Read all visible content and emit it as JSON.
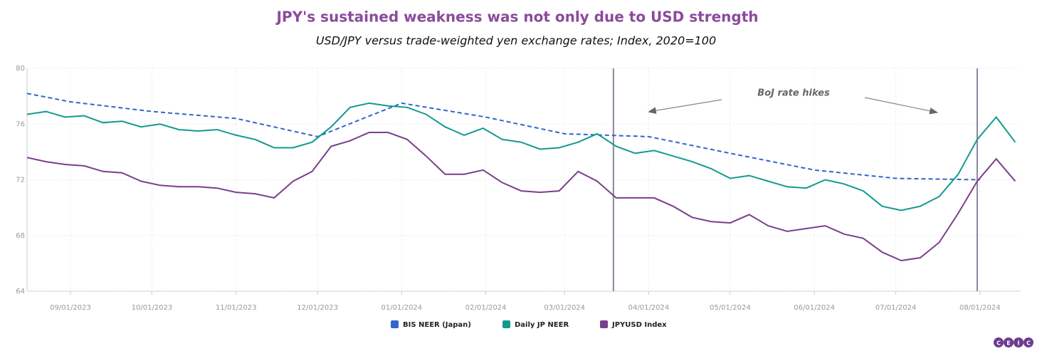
{
  "chart_data": {
    "type": "line",
    "title": "JPY's sustained weakness was not only due to USD strength",
    "subtitle": "USD/JPY versus trade-weighted yen exchange rates; Index, 2020=100",
    "xlim": [
      "08/16/2023",
      "08/16/2024"
    ],
    "xticks": [
      "09/01/2023",
      "10/01/2023",
      "11/01/2023",
      "12/01/2023",
      "01/01/2024",
      "02/01/2024",
      "03/01/2024",
      "04/01/2024",
      "05/01/2024",
      "06/01/2024",
      "07/01/2024",
      "08/01/2024"
    ],
    "ylim": [
      64,
      80
    ],
    "yticks": [
      64,
      68,
      72,
      76,
      80
    ],
    "grid": true,
    "annotation": "BoJ rate hikes",
    "vlines": [
      "03/19/2024",
      "07/31/2024"
    ],
    "series": [
      {
        "name": "BIS NEER (Japan)",
        "color": "#3366cc",
        "dashed": true,
        "x": [
          "08/16/2023",
          "09/01/2023",
          "10/01/2023",
          "11/01/2023",
          "12/01/2023",
          "01/01/2024",
          "02/01/2024",
          "03/01/2024",
          "04/01/2024",
          "05/01/2024",
          "06/01/2024",
          "07/01/2024",
          "08/01/2024"
        ],
        "values": [
          78.2,
          77.6,
          76.9,
          76.4,
          75.1,
          77.5,
          76.5,
          75.3,
          75.1,
          73.9,
          72.7,
          72.1,
          72.0
        ]
      },
      {
        "name": "Daily JP NEER",
        "color": "#14998f",
        "dashed": false,
        "x": [
          "08/16/2023",
          "08/23/2023",
          "08/30/2023",
          "09/06/2023",
          "09/13/2023",
          "09/20/2023",
          "09/27/2023",
          "10/04/2023",
          "10/11/2023",
          "10/18/2023",
          "10/25/2023",
          "11/01/2023",
          "11/08/2023",
          "11/15/2023",
          "11/22/2023",
          "11/29/2023",
          "12/06/2023",
          "12/13/2023",
          "12/20/2023",
          "12/27/2023",
          "01/03/2024",
          "01/10/2024",
          "01/17/2024",
          "01/24/2024",
          "01/31/2024",
          "02/07/2024",
          "02/14/2024",
          "02/21/2024",
          "02/28/2024",
          "03/06/2024",
          "03/13/2024",
          "03/20/2024",
          "03/27/2024",
          "04/03/2024",
          "04/10/2024",
          "04/17/2024",
          "04/24/2024",
          "05/01/2024",
          "05/08/2024",
          "05/15/2024",
          "05/22/2024",
          "05/29/2024",
          "06/05/2024",
          "06/12/2024",
          "06/19/2024",
          "06/26/2024",
          "07/03/2024",
          "07/10/2024",
          "07/17/2024",
          "07/24/2024",
          "07/31/2024",
          "08/07/2024",
          "08/14/2024"
        ],
        "values": [
          76.7,
          76.9,
          76.5,
          76.6,
          76.1,
          76.2,
          75.8,
          76.0,
          75.6,
          75.5,
          75.6,
          75.2,
          74.9,
          74.3,
          74.3,
          74.7,
          75.8,
          77.2,
          77.5,
          77.3,
          77.2,
          76.7,
          75.8,
          75.2,
          75.7,
          74.9,
          74.7,
          74.2,
          74.3,
          74.7,
          75.3,
          74.4,
          73.9,
          74.1,
          73.7,
          73.3,
          72.8,
          72.1,
          72.3,
          71.9,
          71.5,
          71.4,
          72.0,
          71.7,
          71.2,
          70.1,
          69.8,
          70.1,
          70.8,
          72.4,
          74.9,
          76.5,
          74.7
        ]
      },
      {
        "name": "JPYUSD Index",
        "color": "#7b3f8c",
        "dashed": false,
        "x": [
          "08/16/2023",
          "08/23/2023",
          "08/30/2023",
          "09/06/2023",
          "09/13/2023",
          "09/20/2023",
          "09/27/2023",
          "10/04/2023",
          "10/11/2023",
          "10/18/2023",
          "10/25/2023",
          "11/01/2023",
          "11/08/2023",
          "11/15/2023",
          "11/22/2023",
          "11/29/2023",
          "12/06/2023",
          "12/13/2023",
          "12/20/2023",
          "12/27/2023",
          "01/03/2024",
          "01/10/2024",
          "01/17/2024",
          "01/24/2024",
          "01/31/2024",
          "02/07/2024",
          "02/14/2024",
          "02/21/2024",
          "02/28/2024",
          "03/06/2024",
          "03/13/2024",
          "03/20/2024",
          "03/27/2024",
          "04/03/2024",
          "04/10/2024",
          "04/17/2024",
          "04/24/2024",
          "05/01/2024",
          "05/08/2024",
          "05/15/2024",
          "05/22/2024",
          "05/29/2024",
          "06/05/2024",
          "06/12/2024",
          "06/19/2024",
          "06/26/2024",
          "07/03/2024",
          "07/10/2024",
          "07/17/2024",
          "07/24/2024",
          "07/31/2024",
          "08/07/2024",
          "08/14/2024"
        ],
        "values": [
          73.6,
          73.3,
          73.1,
          73.0,
          72.6,
          72.5,
          71.9,
          71.6,
          71.5,
          71.5,
          71.4,
          71.1,
          71.0,
          70.7,
          71.9,
          72.6,
          74.4,
          74.8,
          75.4,
          75.4,
          74.9,
          73.7,
          72.4,
          72.4,
          72.7,
          71.8,
          71.2,
          71.1,
          71.2,
          72.6,
          71.9,
          70.7,
          70.7,
          70.7,
          70.1,
          69.3,
          69.0,
          68.9,
          69.5,
          68.7,
          68.3,
          68.5,
          68.7,
          68.1,
          67.8,
          66.8,
          66.2,
          66.4,
          67.5,
          69.6,
          71.9,
          73.5,
          71.9
        ]
      }
    ],
    "logo": [
      "C",
      "E",
      "I",
      "C"
    ]
  }
}
